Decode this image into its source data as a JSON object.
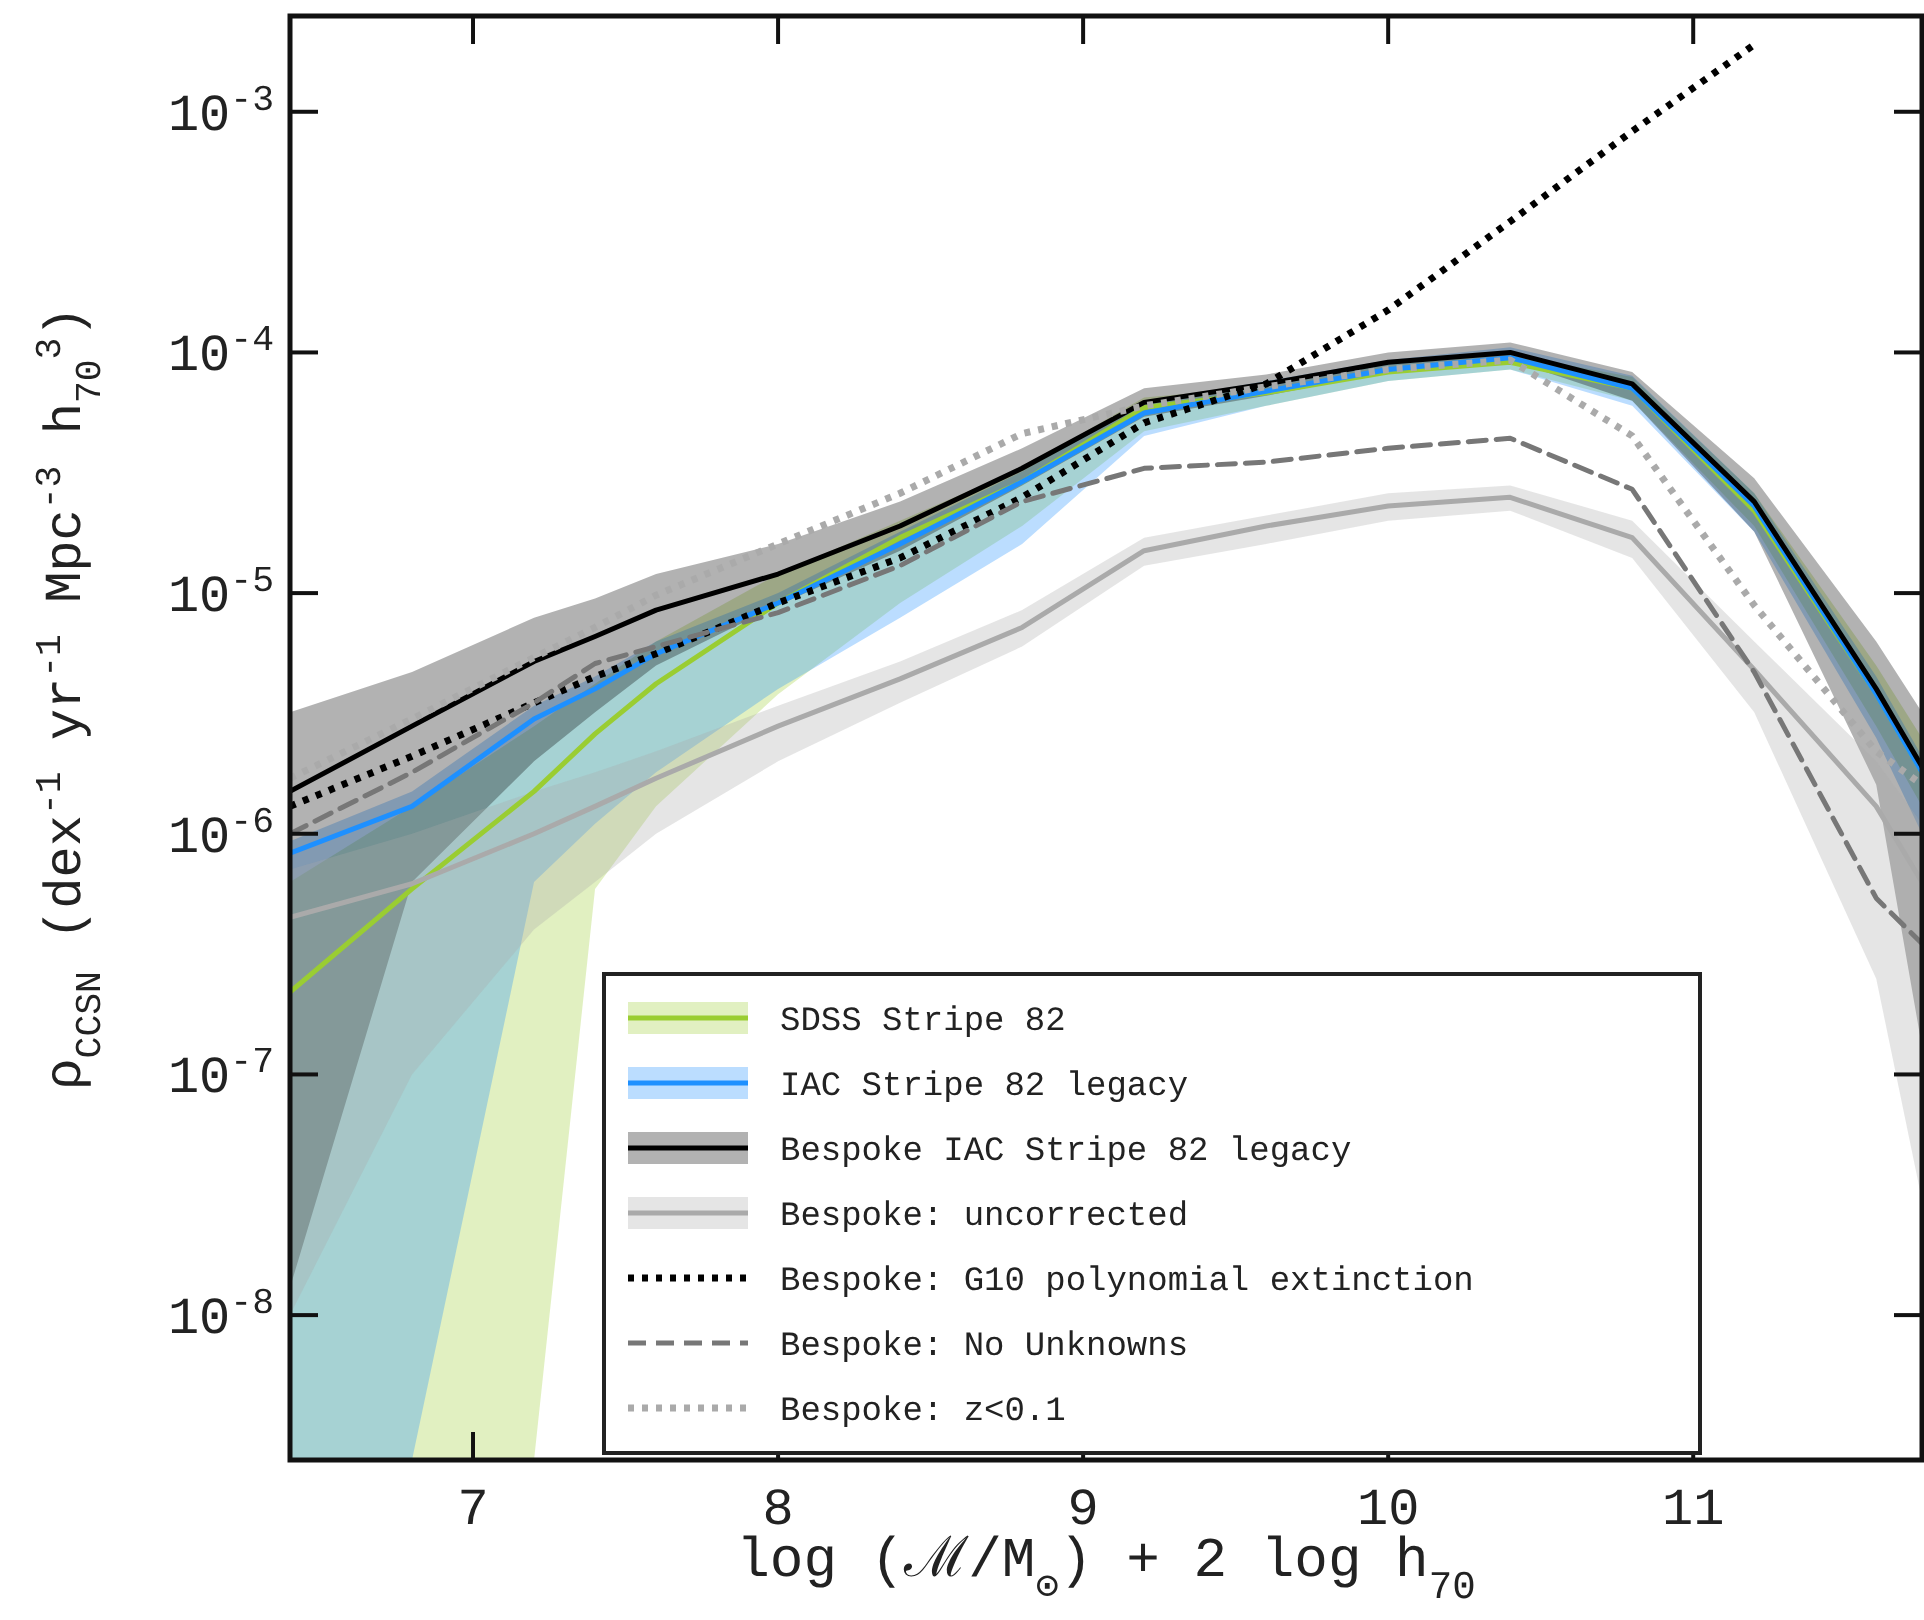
{
  "chart_data": {
    "type": "line",
    "xlabel": "log (ℳ/M$_{⊙}$) + 2 log h$_{70}$",
    "ylabel": "ρ$_{CCSN}$ (dex$^{-1}$ yr$^{-1}$ Mpc$^{-3}$ h$_{70}$$^{3}$)",
    "log": "y",
    "xlim": [
      6.4,
      11.75
    ],
    "ylim": [
      2.5e-09,
      0.0025
    ],
    "xticks": [
      7,
      8,
      9,
      10,
      11
    ],
    "yticks": [
      {
        "value": 1e-08,
        "label": "10$^{-8}$"
      },
      {
        "value": 1e-07,
        "label": "10$^{-7}$"
      },
      {
        "value": 1e-06,
        "label": "10$^{-6}$"
      },
      {
        "value": 1e-05,
        "label": "10$^{-5}$"
      },
      {
        "value": 0.0001,
        "label": "10$^{-4}$"
      },
      {
        "value": 0.001,
        "label": "10$^{-3}$"
      }
    ],
    "x": [
      6.4,
      6.8,
      7.2,
      7.4,
      7.6,
      8.0,
      8.4,
      8.8,
      9.2,
      9.6,
      10.0,
      10.4,
      10.8,
      11.2,
      11.6,
      11.75
    ],
    "grid": false,
    "legend": "bottom",
    "series": [
      {
        "name": "SDSS Stripe 82",
        "color": "#9acd32",
        "line_style": "solid",
        "values": [
          2.2e-07,
          5.9e-07,
          1.5e-06,
          2.6e-06,
          4.2e-06,
          9.1e-06,
          1.7e-05,
          2.9e-05,
          5.9e-05,
          6.8e-05,
          8.3e-05,
          9.1e-05,
          7.1e-05,
          2.2e-05,
          3.8e-06,
          1.8e-06
        ],
        "upper": [
          6.3e-07,
          1.3e-06,
          2.8e-06,
          4.2e-06,
          6.3e-06,
          1.2e-05,
          2e-05,
          3.3e-05,
          6.5e-05,
          7.2e-05,
          8.9e-05,
          9.8e-05,
          7.9e-05,
          2.6e-05,
          5e-06,
          2.5e-06
        ],
        "lower": [
          2.5e-09,
          2.5e-09,
          2.5e-09,
          5.9e-07,
          1.3e-06,
          3.8e-06,
          9.1e-06,
          1.9e-05,
          4.7e-05,
          6e-05,
          7.6e-05,
          8.5e-05,
          6.3e-05,
          1.9e-05,
          2.8e-06,
          1.3e-06
        ]
      },
      {
        "name": "IAC Stripe 82 legacy",
        "color": "#1e90ff",
        "line_style": "solid",
        "values": [
          8.3e-07,
          1.3e-06,
          3e-06,
          4e-06,
          5.6e-06,
          9.1e-06,
          1.6e-05,
          2.9e-05,
          5.6e-05,
          6.9e-05,
          8.5e-05,
          9.5e-05,
          7.1e-05,
          2.3e-05,
          3.8e-06,
          1.8e-06
        ],
        "upper": [
          9.3e-07,
          1.5e-06,
          3.4e-06,
          4.5e-06,
          6.3e-06,
          1e-05,
          1.8e-05,
          3.2e-05,
          6.2e-05,
          7.6e-05,
          9.3e-05,
          0.000105,
          8e-05,
          2.6e-05,
          4.5e-06,
          2.1e-06
        ],
        "lower": [
          2.5e-09,
          2.5e-09,
          6.3e-07,
          1.1e-06,
          1.8e-06,
          4e-06,
          7.9e-06,
          1.6e-05,
          4.5e-05,
          6e-05,
          7.6e-05,
          8.5e-05,
          6e-05,
          1.8e-05,
          2.5e-06,
          1e-06
        ]
      },
      {
        "name": "Bespoke IAC Stripe 82 legacy",
        "color": "#000000",
        "line_style": "solid",
        "values": [
          1.5e-06,
          2.8e-06,
          5.2e-06,
          6.6e-06,
          8.5e-06,
          1.2e-05,
          1.9e-05,
          3.3e-05,
          6.2e-05,
          7.4e-05,
          9.1e-05,
          0.0001,
          7.4e-05,
          2.4e-05,
          4e-06,
          1.9e-06
        ],
        "upper": [
          3.2e-06,
          4.7e-06,
          7.9e-06,
          9.5e-06,
          1.2e-05,
          1.6e-05,
          2.4e-05,
          4e-05,
          7.1e-05,
          8.1e-05,
          0.0001,
          0.00011,
          8.3e-05,
          3e-05,
          6.3e-06,
          3.2e-06
        ],
        "lower": [
          1.3e-08,
          6.3e-07,
          2e-06,
          3.2e-06,
          5e-06,
          8.9e-06,
          1.5e-05,
          2.8e-05,
          5.4e-05,
          6.6e-05,
          8.3e-05,
          9.3e-05,
          6.3e-05,
          1.8e-05,
          1.6e-06,
          1.3e-07
        ]
      },
      {
        "name": "Bespoke: uncorrected",
        "color": "#aaaaaa",
        "line_style": "solid",
        "values": [
          4.5e-07,
          6.2e-07,
          1e-06,
          1.3e-06,
          1.7e-06,
          2.8e-06,
          4.4e-06,
          7.2e-06,
          1.5e-05,
          1.9e-05,
          2.3e-05,
          2.5e-05,
          1.7e-05,
          4.8e-06,
          1.3e-06,
          6.3e-07
        ],
        "upper": [
          7.1e-07,
          1e-06,
          1.5e-06,
          1.8e-06,
          2.2e-06,
          3.4e-06,
          5.2e-06,
          8.5e-06,
          1.7e-05,
          2.1e-05,
          2.6e-05,
          2.8e-05,
          2e-05,
          6.3e-06,
          2e-06,
          1.1e-06
        ],
        "lower": [
          1e-08,
          1e-07,
          4e-07,
          6.3e-07,
          1e-06,
          2e-06,
          3.5e-06,
          6e-06,
          1.3e-05,
          1.6e-05,
          2e-05,
          2.2e-05,
          1.4e-05,
          3.2e-06,
          2.5e-07,
          3e-08
        ]
      },
      {
        "name": "Bespoke: G10 polynomial extinction",
        "color": "#000000",
        "line_style": "dotted",
        "values": [
          1.3e-06,
          2.1e-06,
          3.5e-06,
          4.5e-06,
          5.6e-06,
          9.1e-06,
          1.4e-05,
          2.5e-05,
          5.1e-05,
          7.4e-05,
          0.00015,
          0.00035,
          0.00083,
          0.0019,
          null,
          null
        ]
      },
      {
        "name": "Bespoke: No Unknowns",
        "color": "#777777",
        "line_style": "dashed",
        "values": [
          1e-06,
          1.8e-06,
          3.5e-06,
          5.1e-06,
          6e-06,
          8.3e-06,
          1.3e-05,
          2.4e-05,
          3.3e-05,
          3.5e-05,
          4e-05,
          4.4e-05,
          2.7e-05,
          4.7e-06,
          5.4e-07,
          3.5e-07
        ]
      },
      {
        "name": "Bespoke: z<0.1",
        "color": "#aaaaaa",
        "line_style": "dotted",
        "values": [
          1.7e-06,
          3e-06,
          5.4e-06,
          7.2e-06,
          9.8e-06,
          1.6e-05,
          2.6e-05,
          4.6e-05,
          6e-05,
          7.2e-05,
          8.5e-05,
          9.3e-05,
          4.5e-05,
          8.9e-06,
          2.2e-06,
          1.6e-06
        ]
      }
    ]
  }
}
